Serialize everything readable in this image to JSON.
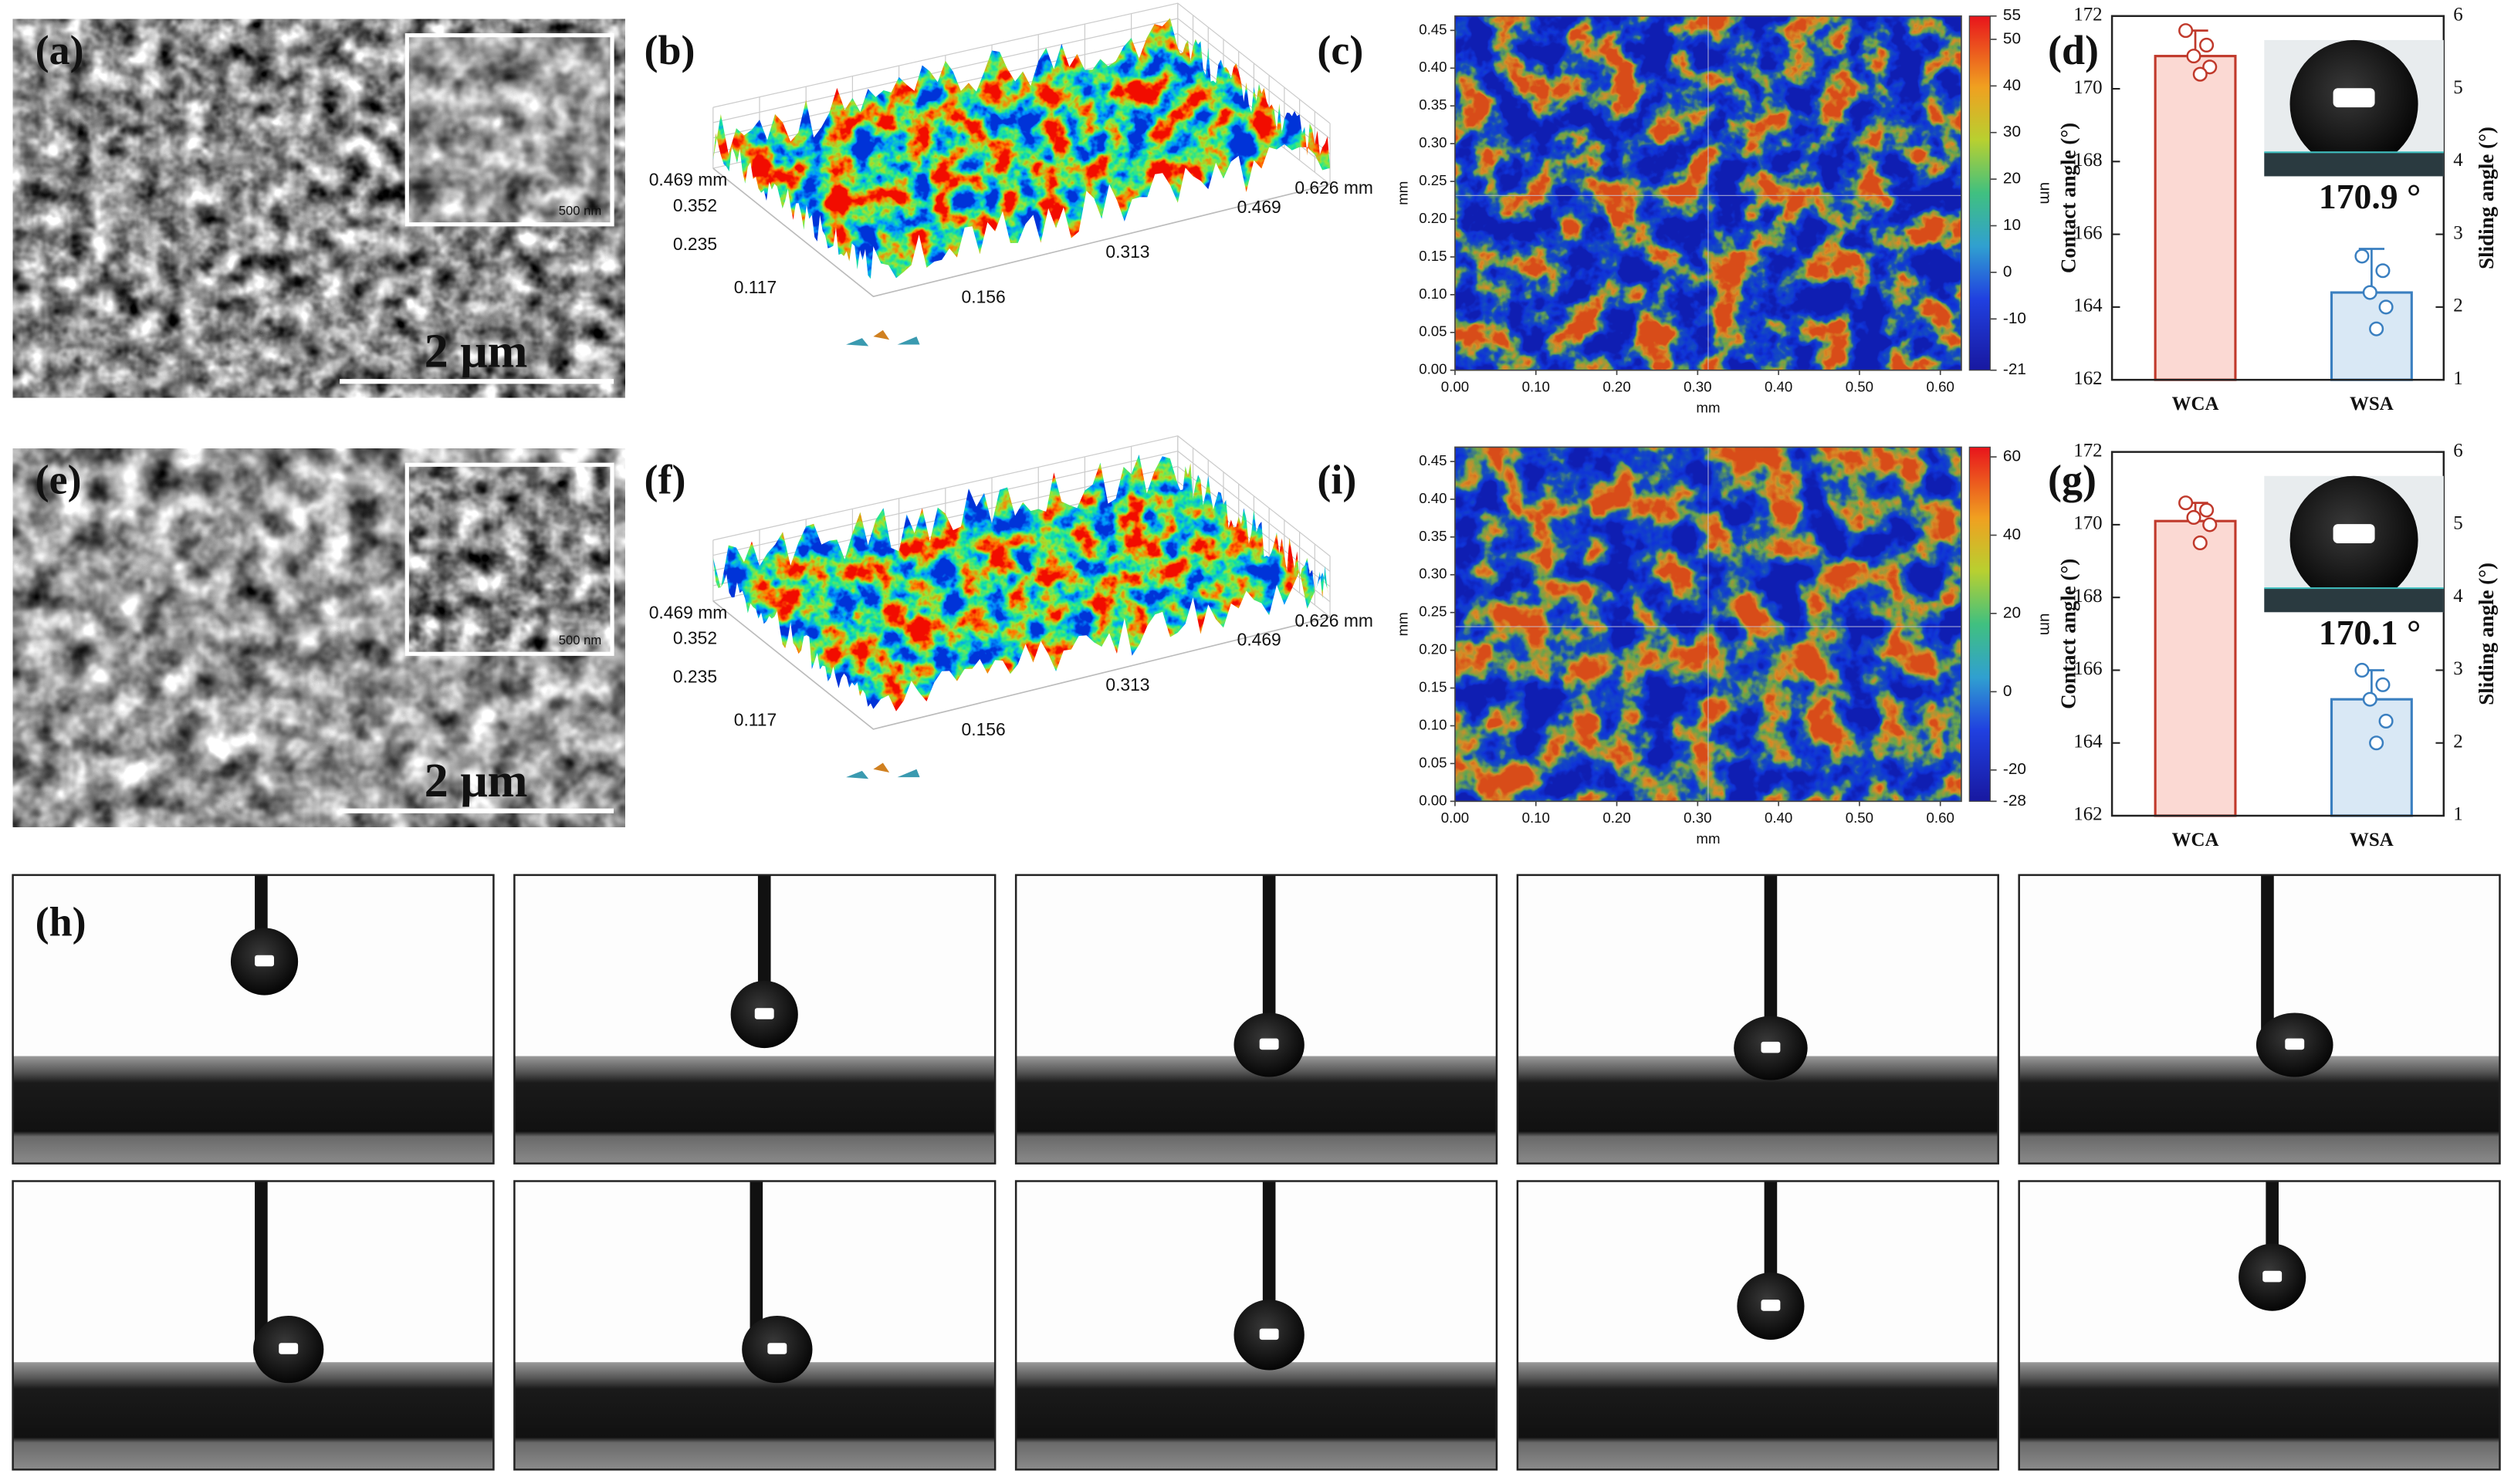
{
  "panel_labels": [
    "(a)",
    "(b)",
    "(c)",
    "(d)",
    "(e)",
    "(f)",
    "(i)",
    "(g)",
    "(h)"
  ],
  "sem": [
    {
      "scale_bar": "2 μm",
      "inset_scale": "500 nm"
    },
    {
      "scale_bar": "2 μm",
      "inset_scale": "500 nm"
    }
  ],
  "surface_3d": [
    {
      "depth_ticks": [
        "0.469 mm",
        "0.352",
        "0.235",
        "0.117"
      ],
      "width_ticks": [
        "0.156",
        "0.313",
        "0.469",
        "0.626 mm"
      ]
    },
    {
      "depth_ticks": [
        "0.469 mm",
        "0.352",
        "0.235",
        "0.117"
      ],
      "width_ticks": [
        "0.156",
        "0.313",
        "0.469",
        "0.626 mm"
      ]
    }
  ],
  "height_map": [
    {
      "xlabel": "mm",
      "ylabel": "mm",
      "xlim": [
        0,
        0.626
      ],
      "ylim": [
        0,
        0.469
      ],
      "xticks": [
        {
          "value": 0,
          "label": "0.00"
        },
        {
          "value": 0.1,
          "label": "0.10"
        },
        {
          "value": 0.2,
          "label": "0.20"
        },
        {
          "value": 0.3,
          "label": "0.30"
        },
        {
          "value": 0.4,
          "label": "0.40"
        },
        {
          "value": 0.5,
          "label": "0.50"
        },
        {
          "value": 0.6,
          "label": "0.60"
        }
      ],
      "yticks": [
        {
          "value": 0,
          "label": "0.00"
        },
        {
          "value": 0.05,
          "label": "0.05"
        },
        {
          "value": 0.1,
          "label": "0.10"
        },
        {
          "value": 0.15,
          "label": "0.15"
        },
        {
          "value": 0.2,
          "label": "0.20"
        },
        {
          "value": 0.25,
          "label": "0.25"
        },
        {
          "value": 0.3,
          "label": "0.30"
        },
        {
          "value": 0.35,
          "label": "0.35"
        },
        {
          "value": 0.4,
          "label": "0.40"
        },
        {
          "value": 0.45,
          "label": "0.45"
        }
      ],
      "colorbar_label": "um",
      "colorbar_lim": [
        -21,
        55
      ],
      "colorbar_ticks": [
        55,
        50,
        40,
        30,
        20,
        10,
        0,
        -10,
        -21
      ]
    },
    {
      "xlabel": "mm",
      "ylabel": "mm",
      "xlim": [
        0,
        0.626
      ],
      "ylim": [
        0,
        0.469
      ],
      "xticks": [
        {
          "value": 0,
          "label": "0.00"
        },
        {
          "value": 0.1,
          "label": "0.10"
        },
        {
          "value": 0.2,
          "label": "0.20"
        },
        {
          "value": 0.3,
          "label": "0.30"
        },
        {
          "value": 0.4,
          "label": "0.40"
        },
        {
          "value": 0.5,
          "label": "0.50"
        },
        {
          "value": 0.6,
          "label": "0.60"
        }
      ],
      "yticks": [
        {
          "value": 0,
          "label": "0.00"
        },
        {
          "value": 0.05,
          "label": "0.05"
        },
        {
          "value": 0.1,
          "label": "0.10"
        },
        {
          "value": 0.15,
          "label": "0.15"
        },
        {
          "value": 0.2,
          "label": "0.20"
        },
        {
          "value": 0.25,
          "label": "0.25"
        },
        {
          "value": 0.3,
          "label": "0.30"
        },
        {
          "value": 0.35,
          "label": "0.35"
        },
        {
          "value": 0.4,
          "label": "0.40"
        },
        {
          "value": 0.45,
          "label": "0.45"
        }
      ],
      "colorbar_label": "um",
      "colorbar_lim": [
        -28,
        62.5
      ],
      "colorbar_ticks": [
        60,
        40,
        20,
        0,
        -20,
        -28
      ]
    }
  ],
  "chart_data": [
    {
      "type": "bar",
      "ylabel": "Contact angle (°)",
      "y2label": "Sliding angle (°)",
      "categories": [
        "WCA",
        "WSA"
      ],
      "ylim": [
        162,
        172
      ],
      "yticks": [
        162,
        164,
        166,
        168,
        170,
        172
      ],
      "y2lim": [
        1,
        6
      ],
      "y2ticks": [
        1,
        2,
        3,
        4,
        5,
        6
      ],
      "series": [
        {
          "color": "#fbd9d3",
          "edge": "#c0392b",
          "values": [
            170.9,
            null
          ],
          "errors": [
            0.7,
            null
          ],
          "points": [
            [
              171.6,
              171.2,
              170.9,
              170.6,
              170.4
            ],
            null
          ]
        },
        {
          "axis": "y2",
          "color": "#d9e8f5",
          "edge": "#3a7fc0",
          "values": [
            null,
            2.2
          ],
          "errors": [
            null,
            0.6
          ],
          "points": [
            null,
            [
              2.7,
              2.5,
              2.2,
              2.0,
              1.7
            ]
          ]
        }
      ],
      "annotation": "170.9 °"
    },
    {
      "type": "bar",
      "ylabel": "Contact angle (°)",
      "y2label": "Sliding angle (°)",
      "categories": [
        "WCA",
        "WSA"
      ],
      "ylim": [
        162,
        172
      ],
      "yticks": [
        162,
        164,
        166,
        168,
        170,
        172
      ],
      "y2lim": [
        1,
        6
      ],
      "y2ticks": [
        1,
        2,
        3,
        4,
        5,
        6
      ],
      "series": [
        {
          "color": "#fbd9d3",
          "edge": "#c0392b",
          "values": [
            170.1,
            null
          ],
          "errors": [
            0.5,
            null
          ],
          "points": [
            [
              170.6,
              170.4,
              170.2,
              170.0,
              169.5
            ],
            null
          ]
        },
        {
          "axis": "y2",
          "color": "#d9e8f5",
          "edge": "#3a7fc0",
          "values": [
            null,
            2.6
          ],
          "errors": [
            null,
            0.4
          ],
          "points": [
            null,
            [
              3.0,
              2.8,
              2.6,
              2.3,
              2.0
            ]
          ]
        }
      ],
      "annotation": "170.1 °"
    }
  ]
}
